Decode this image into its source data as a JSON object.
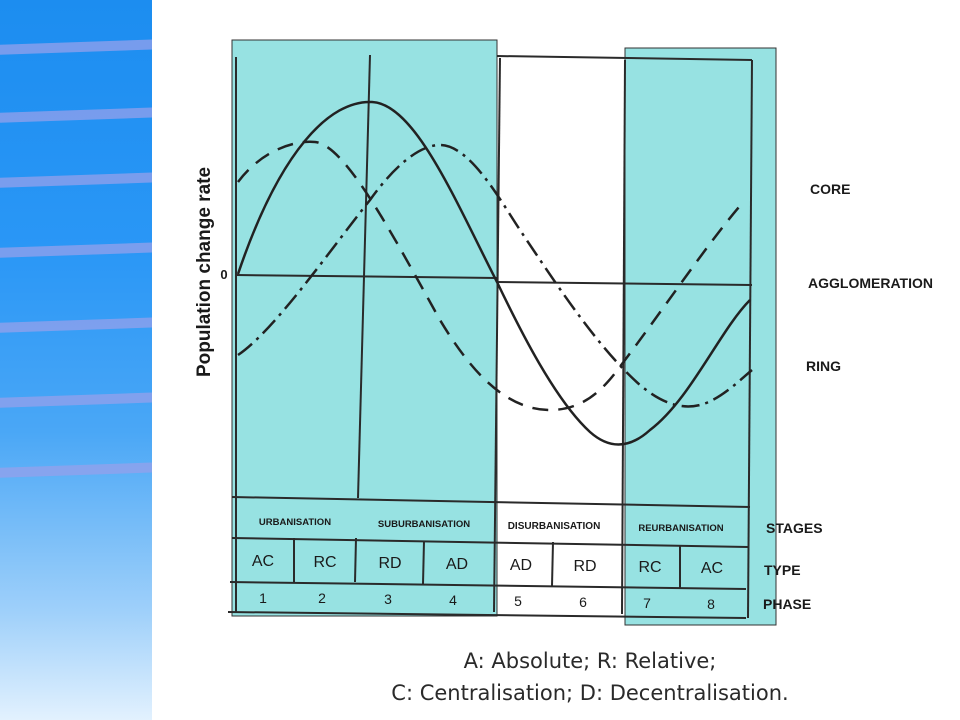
{
  "yaxis_label": "Population change rate",
  "zero_label": "0",
  "curve_labels": {
    "core": "CORE",
    "agglomeration": "AGGLOMERATION",
    "ring": "RING"
  },
  "row_labels": {
    "stages": "STAGES",
    "type": "TYPE",
    "phase": "PHASE"
  },
  "stages": [
    "URBANISATION",
    "SUBURBANISATION",
    "DISURBANISATION",
    "REURBANISATION"
  ],
  "types": [
    "AC",
    "RC",
    "RD",
    "AD",
    "AD",
    "RD",
    "RC",
    "AC"
  ],
  "phases": [
    "1",
    "2",
    "3",
    "4",
    "5",
    "6",
    "7",
    "8"
  ],
  "legend": {
    "line1": "A: Absolute; R: Relative;",
    "line2": "C: Centralisation; D: Decentralisation."
  },
  "colors": {
    "highlight": "#97e2e2",
    "sidebar": "#2a97f6",
    "ink": "#222222"
  }
}
